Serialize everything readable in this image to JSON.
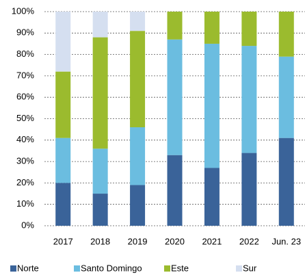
{
  "chart_data": {
    "type": "stacked_bar",
    "categories": [
      "2017",
      "2018",
      "2019",
      "2020",
      "2021",
      "2022",
      "Jun. 23"
    ],
    "series": [
      {
        "name": "Norte",
        "color": "#3a6399",
        "values": [
          20,
          15,
          19,
          33,
          27,
          34,
          41
        ]
      },
      {
        "name": "Santo Domingo",
        "color": "#6bbde0",
        "values": [
          21,
          21,
          27,
          54,
          58,
          50,
          38
        ]
      },
      {
        "name": "Este",
        "color": "#9bbb2e",
        "values": [
          31,
          52,
          45,
          13,
          15,
          16,
          21
        ]
      },
      {
        "name": "Sur",
        "color": "#d5dff0",
        "values": [
          28,
          12,
          9,
          0,
          0,
          0,
          0
        ]
      }
    ],
    "ylim": [
      0,
      100
    ],
    "yticks": [
      {
        "value": 0,
        "label": "0%"
      },
      {
        "value": 10,
        "label": "10%"
      },
      {
        "value": 20,
        "label": "20%"
      },
      {
        "value": 30,
        "label": "30%"
      },
      {
        "value": 40,
        "label": "40%"
      },
      {
        "value": 50,
        "label": "50%"
      },
      {
        "value": 60,
        "label": "60%"
      },
      {
        "value": 70,
        "label": "70%"
      },
      {
        "value": 80,
        "label": "80%"
      },
      {
        "value": 90,
        "label": "90%"
      },
      {
        "value": 100,
        "label": "100%"
      }
    ],
    "grid": true,
    "legend": "bottom"
  }
}
